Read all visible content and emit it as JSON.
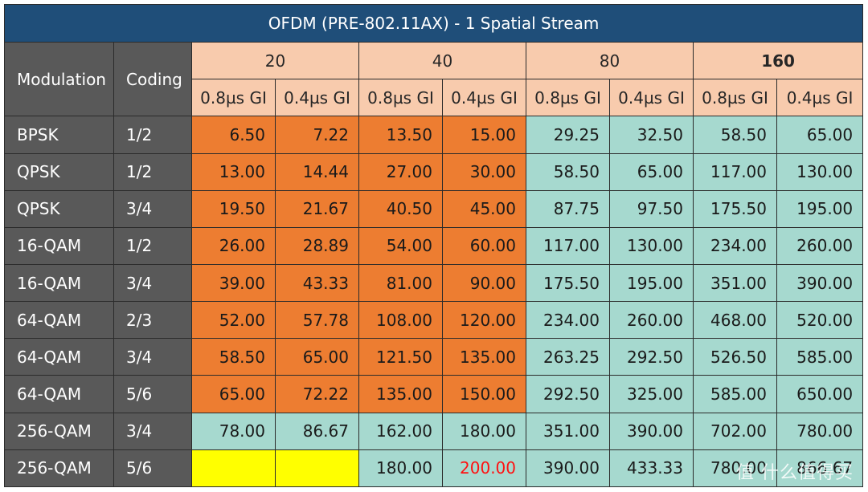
{
  "title": "OFDM (PRE-802.11AX) - 1 Spatial Stream",
  "header": {
    "modulation": "Modulation",
    "coding": "Coding",
    "bandwidths": [
      "20",
      "40",
      "80",
      "160"
    ],
    "gi": [
      "0.8µs GI",
      "0.4µs GI"
    ]
  },
  "rows": [
    {
      "mod": "BPSK",
      "coding": "1/2",
      "values": [
        "6.50",
        "7.22",
        "13.50",
        "15.00",
        "29.25",
        "32.50",
        "58.50",
        "65.00"
      ]
    },
    {
      "mod": "QPSK",
      "coding": "1/2",
      "values": [
        "13.00",
        "14.44",
        "27.00",
        "30.00",
        "58.50",
        "65.00",
        "117.00",
        "130.00"
      ]
    },
    {
      "mod": "QPSK",
      "coding": "3/4",
      "values": [
        "19.50",
        "21.67",
        "40.50",
        "45.00",
        "87.75",
        "97.50",
        "175.50",
        "195.00"
      ]
    },
    {
      "mod": "16-QAM",
      "coding": "1/2",
      "values": [
        "26.00",
        "28.89",
        "54.00",
        "60.00",
        "117.00",
        "130.00",
        "234.00",
        "260.00"
      ]
    },
    {
      "mod": "16-QAM",
      "coding": "3/4",
      "values": [
        "39.00",
        "43.33",
        "81.00",
        "90.00",
        "175.50",
        "195.00",
        "351.00",
        "390.00"
      ]
    },
    {
      "mod": "64-QAM",
      "coding": "2/3",
      "values": [
        "52.00",
        "57.78",
        "108.00",
        "120.00",
        "234.00",
        "260.00",
        "468.00",
        "520.00"
      ]
    },
    {
      "mod": "64-QAM",
      "coding": "3/4",
      "values": [
        "58.50",
        "65.00",
        "121.50",
        "135.00",
        "263.25",
        "292.50",
        "526.50",
        "585.00"
      ]
    },
    {
      "mod": "64-QAM",
      "coding": "5/6",
      "values": [
        "65.00",
        "72.22",
        "135.00",
        "150.00",
        "292.50",
        "325.00",
        "585.00",
        "650.00"
      ]
    },
    {
      "mod": "256-QAM",
      "coding": "3/4",
      "values": [
        "78.00",
        "86.67",
        "162.00",
        "180.00",
        "351.00",
        "390.00",
        "702.00",
        "780.00"
      ]
    },
    {
      "mod": "256-QAM",
      "coding": "5/6",
      "values": [
        "",
        "",
        "180.00",
        "200.00",
        "390.00",
        "433.33",
        "780.00",
        "866.67"
      ]
    }
  ],
  "watermark": "值 什么值得买",
  "colors": {
    "title_bg": "#1f4e79",
    "label_bg": "#595959",
    "header_bg": "#f8cbad",
    "low_rate_bg": "#ed7d31",
    "high_rate_bg": "#a6d9cf",
    "unsupported_bg": "#ffff00",
    "highlight_text": "#ff1111"
  }
}
